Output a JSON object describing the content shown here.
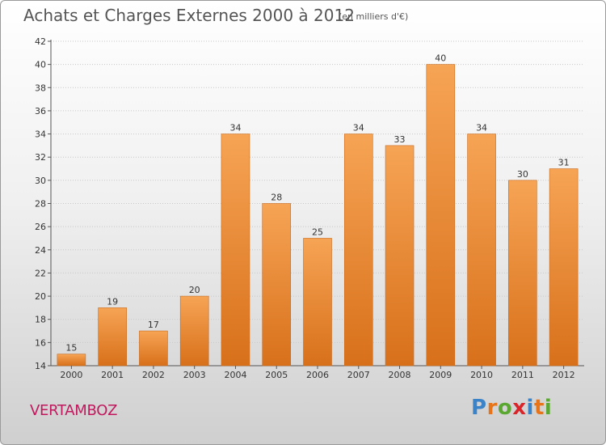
{
  "title": "Achats et Charges Externes 2000 à 2012",
  "unit": "(en milliers d'€)",
  "place": "VERTAMBOZ",
  "logo": {
    "text": "Proxiti",
    "letters": [
      {
        "ch": "P",
        "color": "#3b83c9"
      },
      {
        "ch": "r",
        "color": "#e8741a"
      },
      {
        "ch": "o",
        "color": "#5aa832"
      },
      {
        "ch": "x",
        "color": "#d9252a"
      },
      {
        "ch": "i",
        "color": "#3b83c9"
      },
      {
        "ch": "t",
        "color": "#e8741a"
      },
      {
        "ch": "i",
        "color": "#5aa832"
      }
    ]
  },
  "colors": {
    "bar_top": "#f6a455",
    "bar_bottom": "#d8701a",
    "bar_stroke": "#c86a1e",
    "grid": "#c8c8c8",
    "axis": "#555555"
  },
  "chart_data": {
    "type": "bar",
    "categories": [
      "2000",
      "2001",
      "2002",
      "2003",
      "2004",
      "2005",
      "2006",
      "2007",
      "2008",
      "2009",
      "2010",
      "2011",
      "2012"
    ],
    "values": [
      15,
      19,
      17,
      20,
      34,
      28,
      25,
      34,
      33,
      40,
      34,
      30,
      31
    ],
    "ylim": [
      14,
      42
    ],
    "yticks": [
      14,
      16,
      18,
      20,
      22,
      24,
      26,
      28,
      30,
      32,
      34,
      36,
      38,
      40,
      42
    ],
    "grid": true,
    "data_labels": true
  }
}
